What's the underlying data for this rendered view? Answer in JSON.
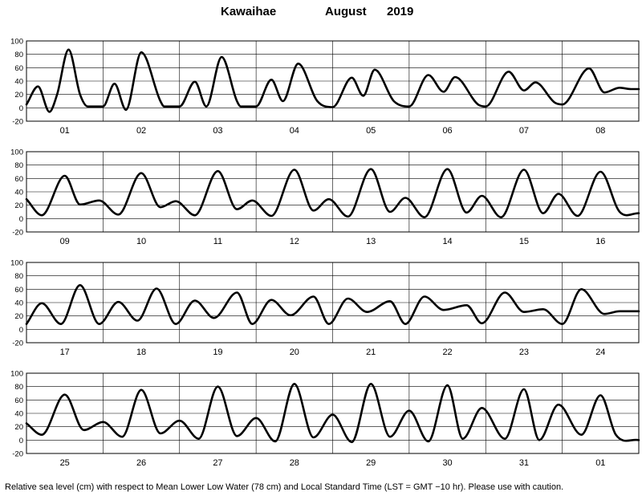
{
  "header": {
    "station": "Kawaihae",
    "month": "August",
    "year": "2019"
  },
  "footnote": "Relative sea level (cm) with respect to Mean Lower Low Water (78 cm) and Local Standard Time (LST = GMT −10 hr). Please use with caution.",
  "chart_data": [
    {
      "type": "line",
      "ylabel": "Relative sea level (cm)",
      "ylim": [
        -20,
        100
      ],
      "yticks": [
        100,
        80,
        60,
        40,
        20,
        0,
        -20
      ],
      "grid": true,
      "day_labels": [
        "01",
        "02",
        "03",
        "04",
        "05",
        "06",
        "07",
        "08"
      ],
      "series": [
        {
          "x_days": [
            0,
            0.15,
            0.3,
            0.4,
            0.55,
            0.7,
            0.8,
            1,
            1.15,
            1.3,
            1.5,
            1.75,
            1.8,
            2,
            2.2,
            2.35,
            2.55,
            2.75,
            2.8,
            3,
            3.2,
            3.35,
            3.55,
            3.8,
            4,
            4.25,
            4.4,
            4.55,
            4.8,
            5,
            5.25,
            5.45,
            5.6,
            5.9,
            6,
            6.3,
            6.5,
            6.65,
            6.9,
            7,
            7.35,
            7.55,
            7.75,
            7.9,
            8
          ],
          "values": [
            5,
            32,
            -6,
            20,
            87,
            20,
            2,
            2,
            36,
            -3,
            83,
            10,
            2,
            2,
            39,
            2,
            76,
            10,
            2,
            2,
            42,
            10,
            66,
            10,
            1,
            45,
            18,
            57,
            10,
            2,
            49,
            24,
            46,
            5,
            2,
            54,
            26,
            38,
            8,
            5,
            59,
            23,
            30,
            28,
            28
          ]
        }
      ]
    },
    {
      "type": "line",
      "ylabel": "Relative sea level (cm)",
      "ylim": [
        -20,
        100
      ],
      "yticks": [
        100,
        80,
        60,
        40,
        20,
        0,
        -20
      ],
      "grid": true,
      "day_labels": [
        "09",
        "10",
        "11",
        "12",
        "13",
        "14",
        "15",
        "16"
      ],
      "series": [
        {
          "x_days": [
            0,
            0.2,
            0.5,
            0.7,
            0.95,
            1.2,
            1.5,
            1.75,
            1.95,
            2.2,
            2.5,
            2.75,
            2.95,
            3.2,
            3.5,
            3.75,
            3.95,
            4.2,
            4.5,
            4.75,
            4.95,
            5.2,
            5.5,
            5.75,
            5.95,
            6.2,
            6.5,
            6.75,
            6.95,
            7.2,
            7.5,
            7.75,
            8
          ],
          "values": [
            29,
            5,
            64,
            21,
            27,
            6,
            68,
            17,
            26,
            5,
            71,
            14,
            27,
            4,
            73,
            12,
            29,
            3,
            74,
            10,
            31,
            2,
            74,
            9,
            34,
            2,
            73,
            8,
            37,
            4,
            70,
            10,
            8
          ]
        }
      ]
    },
    {
      "type": "line",
      "ylabel": "Relative sea level (cm)",
      "ylim": [
        -20,
        100
      ],
      "yticks": [
        100,
        80,
        60,
        40,
        20,
        0,
        -20
      ],
      "grid": true,
      "day_labels": [
        "17",
        "18",
        "19",
        "20",
        "21",
        "22",
        "23",
        "24"
      ],
      "series": [
        {
          "x_days": [
            0,
            0.2,
            0.45,
            0.7,
            0.95,
            1.2,
            1.45,
            1.7,
            1.95,
            2.2,
            2.45,
            2.75,
            2.95,
            3.2,
            3.45,
            3.75,
            3.95,
            4.2,
            4.45,
            4.75,
            4.95,
            5.2,
            5.45,
            5.75,
            5.95,
            6.25,
            6.5,
            6.75,
            7,
            7.25,
            7.55,
            7.75,
            8
          ],
          "values": [
            8,
            39,
            8,
            66,
            8,
            41,
            13,
            61,
            8,
            43,
            17,
            55,
            8,
            44,
            21,
            49,
            8,
            46,
            26,
            42,
            8,
            49,
            29,
            36,
            9,
            55,
            26,
            30,
            8,
            60,
            23,
            27,
            27
          ]
        }
      ]
    },
    {
      "type": "line",
      "ylabel": "Relative sea level (cm)",
      "ylim": [
        -20,
        100
      ],
      "yticks": [
        100,
        80,
        60,
        40,
        20,
        0,
        -20
      ],
      "grid": true,
      "day_labels": [
        "25",
        "26",
        "27",
        "28",
        "29",
        "30",
        "31",
        "01"
      ],
      "series": [
        {
          "x_days": [
            0,
            0.2,
            0.5,
            0.75,
            1,
            1.25,
            1.5,
            1.75,
            2,
            2.25,
            2.5,
            2.75,
            3,
            3.25,
            3.5,
            3.75,
            4,
            4.25,
            4.5,
            4.75,
            5,
            5.25,
            5.5,
            5.7,
            5.95,
            6.25,
            6.5,
            6.7,
            6.95,
            7.25,
            7.5,
            7.7,
            8
          ],
          "values": [
            25,
            8,
            68,
            15,
            27,
            5,
            75,
            10,
            29,
            2,
            80,
            6,
            33,
            -2,
            84,
            4,
            38,
            -3,
            84,
            5,
            44,
            -2,
            82,
            2,
            48,
            2,
            76,
            0,
            53,
            8,
            67,
            8,
            0
          ]
        }
      ]
    }
  ]
}
